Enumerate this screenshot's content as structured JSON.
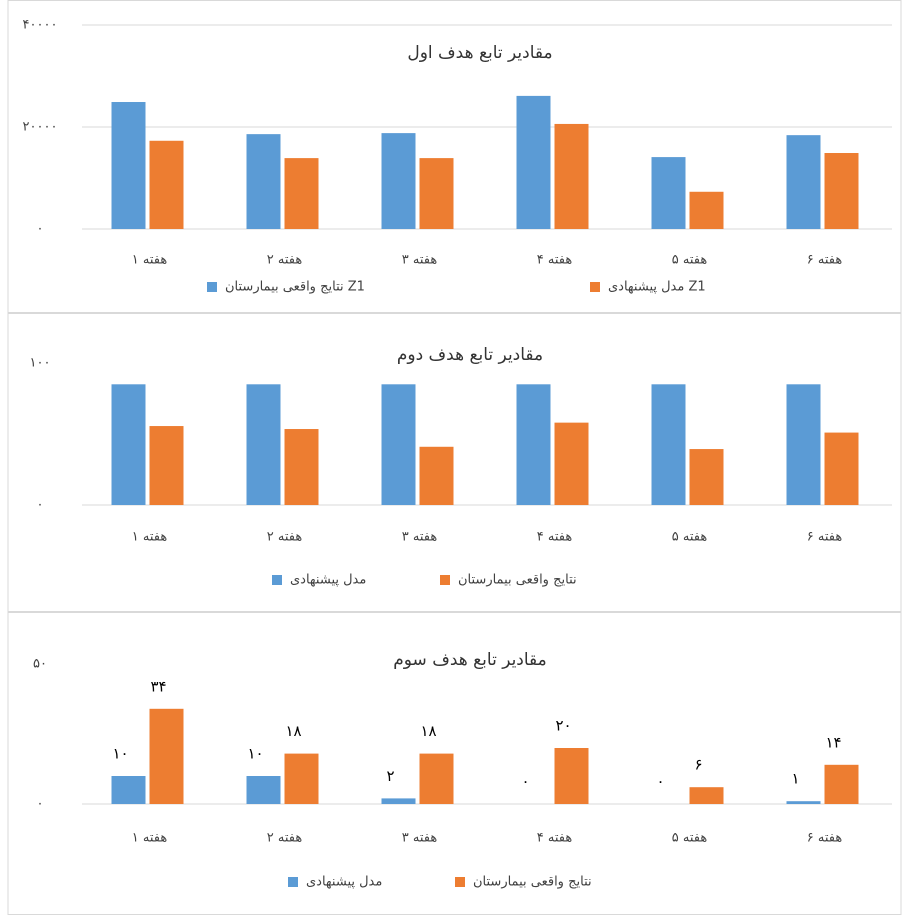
{
  "chart_data": [
    {
      "type": "bar",
      "title": "مقادیر تابع هدف اول",
      "categories": [
        "هفته ۱",
        "هفته ۲",
        "هفته ۳",
        "هفته ۴",
        "هفته ۵",
        "هفته ۶"
      ],
      "series": [
        {
          "name": "نتایج واقعی بیمارستان Z1",
          "color": "#5b9bd5",
          "values": [
            24900,
            18600,
            18800,
            26100,
            14100,
            18400
          ]
        },
        {
          "name": "مدل پیشنهادی Z1",
          "color": "#ed7d31",
          "values": [
            17300,
            13900,
            13900,
            20600,
            7300,
            14900
          ]
        }
      ],
      "ylim": [
        0,
        40000
      ],
      "yticks": [
        {
          "value": 0,
          "label": "۰"
        },
        {
          "value": 20000,
          "label": "۲۰۰۰۰"
        },
        {
          "value": 40000,
          "label": "۴۰۰۰۰"
        }
      ],
      "grid": true
    },
    {
      "type": "bar",
      "title": "مقادیر تابع هدف دوم",
      "categories": [
        "هفته ۱",
        "هفته ۲",
        "هفته ۳",
        "هفته ۴",
        "هفته ۵",
        "هفته ۶"
      ],
      "series": [
        {
          "name": "مدل پیشنهادی",
          "color": "#5b9bd5",
          "values": [
            85,
            85,
            85,
            85,
            85,
            85
          ]
        },
        {
          "name": "نتایج واقعی بیمارستان",
          "color": "#ed7d31",
          "values": [
            55.6,
            53.5,
            41,
            58,
            39.4,
            51
          ]
        }
      ],
      "ylim": [
        0,
        100
      ],
      "yticks": [
        {
          "value": 0,
          "label": "۰"
        },
        {
          "value": 100,
          "label": "۱۰۰"
        }
      ],
      "grid": false
    },
    {
      "type": "bar",
      "title": "مقادیر تابع هدف سوم",
      "categories": [
        "هفته ۱",
        "هفته ۲",
        "هفته ۳",
        "هفته ۴",
        "هفته ۵",
        "هفته ۶"
      ],
      "series": [
        {
          "name": "مدل پیشنهادی",
          "color": "#5b9bd5",
          "values": [
            10,
            10,
            2,
            0,
            0,
            1
          ],
          "value_labels": [
            "۱۰",
            "۱۰",
            "۲",
            "۰",
            "۰",
            "۱"
          ]
        },
        {
          "name": "نتایج واقعی بیمارستان",
          "color": "#ed7d31",
          "values": [
            34,
            18,
            18,
            20,
            6,
            14
          ],
          "value_labels": [
            "۳۴",
            "۱۸",
            "۱۸",
            "۲۰",
            "۶",
            "۱۴"
          ]
        }
      ],
      "ylim": [
        0,
        50
      ],
      "yticks": [
        {
          "value": 0,
          "label": "۰"
        },
        {
          "value": 50,
          "label": "۵۰"
        }
      ],
      "grid": false
    }
  ]
}
